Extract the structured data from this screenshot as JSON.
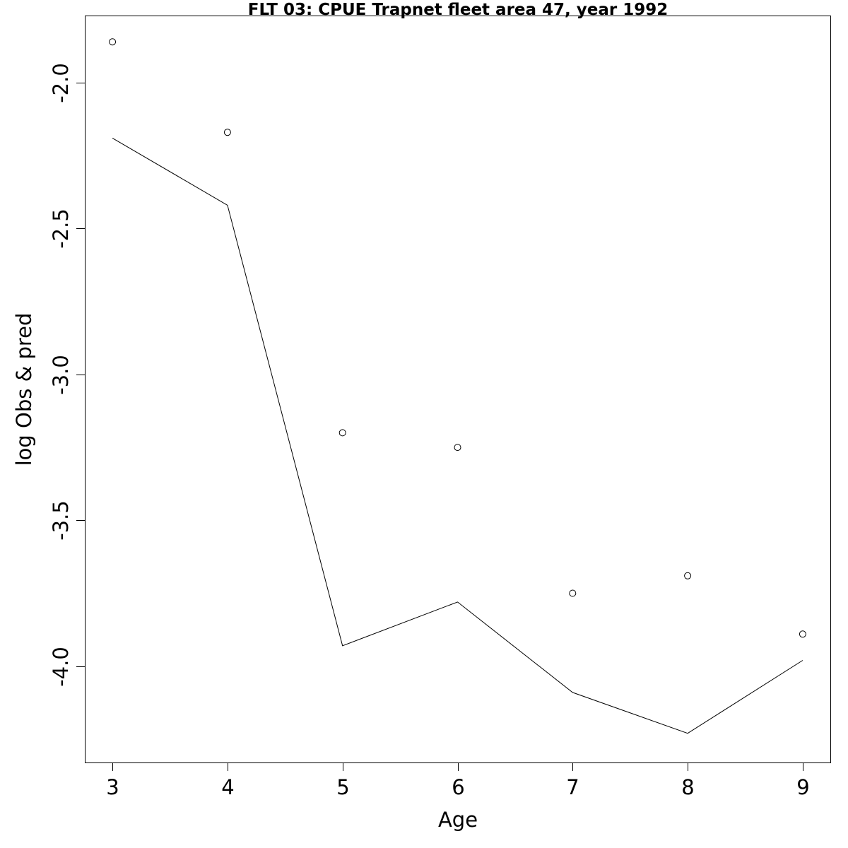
{
  "chart_data": {
    "type": "line",
    "title": "FLT 03: CPUE Trapnet fleet area 47, year 1992",
    "xlabel": "Age",
    "ylabel": "log Obs & pred",
    "x": [
      3,
      4,
      5,
      6,
      7,
      8,
      9
    ],
    "xticks": [
      3,
      4,
      5,
      6,
      7,
      8,
      9
    ],
    "xtick_labels": [
      "3",
      "4",
      "5",
      "6",
      "7",
      "8",
      "9"
    ],
    "yticks": [
      -4.0,
      -3.5,
      -3.0,
      -2.5,
      -2.0
    ],
    "ytick_labels": [
      "-4.0",
      "-3.5",
      "-3.0",
      "-2.5",
      "-2.0"
    ],
    "xlim": [
      2.76,
      9.24
    ],
    "ylim": [
      -4.33,
      -1.77
    ],
    "grid": false,
    "series": [
      {
        "style": "points",
        "marker": "open-circle",
        "values": [
          -1.86,
          -2.17,
          -3.2,
          -3.25,
          -3.75,
          -3.69,
          -3.89
        ]
      },
      {
        "style": "line",
        "values": [
          -2.19,
          -2.42,
          -3.93,
          -3.78,
          -4.09,
          -4.23,
          -3.98
        ]
      }
    ]
  }
}
